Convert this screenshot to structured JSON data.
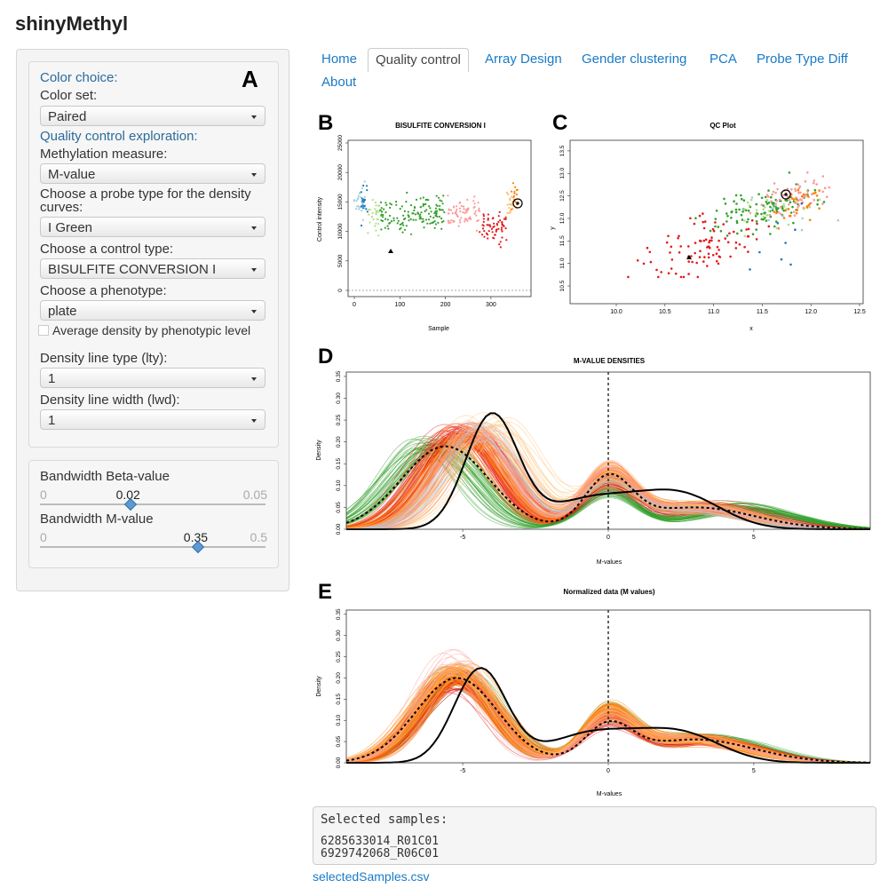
{
  "app_title": "shinyMethyl",
  "sidebar": {
    "panel_letter": "A",
    "color_choice_header": "Color choice:",
    "color_set_label": "Color set:",
    "color_set_value": "Paired",
    "qc_header": "Quality control exploration:",
    "meth_measure_label": "Methylation measure:",
    "meth_measure_value": "M-value",
    "probe_type_label": "Choose a probe type for the density curves:",
    "probe_type_value": "I Green",
    "control_type_label": "Choose a control type:",
    "control_type_value": "BISULFITE CONVERSION I",
    "phenotype_label": "Choose a phenotype:",
    "phenotype_value": "plate",
    "avg_density_label": "Average density by phenotypic level",
    "lty_label": "Density line type (lty):",
    "lty_value": "1",
    "lwd_label": "Density line width (lwd):",
    "lwd_value": "1",
    "bw_beta_label": "Bandwidth Beta-value",
    "bw_beta_min": "0",
    "bw_beta_max": "0.05",
    "bw_beta_value": "0.02",
    "bw_beta_fraction": 0.4,
    "bw_m_label": "Bandwidth M-value",
    "bw_m_min": "0",
    "bw_m_max": "0.5",
    "bw_m_value": "0.35",
    "bw_m_fraction": 0.7
  },
  "tabs": [
    "Home",
    "Quality control",
    "Array Design",
    "Gender clustering",
    "PCA",
    "Probe Type Diff",
    "About"
  ],
  "active_tab": "Quality control",
  "plots": {
    "B": {
      "letter": "B",
      "title": "BISULFITE CONVERSION I",
      "xlabel": "Sample",
      "ylabel": "Control intensity",
      "xticks": [
        "0",
        "100",
        "200",
        "300"
      ],
      "yticks": [
        "0",
        "5000",
        "10000",
        "15000",
        "20000",
        "25000"
      ]
    },
    "C": {
      "letter": "C",
      "title": "QC Plot",
      "xlabel": "x",
      "ylabel": "y",
      "xticks": [
        "10.0",
        "10.5",
        "11.0",
        "11.5",
        "12.0",
        "12.5"
      ],
      "yticks": [
        "10.5",
        "11.0",
        "11.5",
        "12.0",
        "12.5",
        "13.0",
        "13.5"
      ]
    },
    "D": {
      "letter": "D",
      "title": "M-VALUE DENSITIES",
      "xlabel": "M-values",
      "ylabel": "Density",
      "xticks": [
        "-5",
        "0",
        "5"
      ],
      "yticks": [
        "0.00",
        "0.05",
        "0.10",
        "0.15",
        "0.20",
        "0.25",
        "0.30",
        "0.35"
      ]
    },
    "E": {
      "letter": "E",
      "title": "Normalized data (M values)",
      "xlabel": "M-values",
      "ylabel": "Density",
      "xticks": [
        "-5",
        "0",
        "5"
      ],
      "yticks": [
        "0.00",
        "0.05",
        "0.10",
        "0.15",
        "0.20",
        "0.25",
        "0.30",
        "0.35"
      ]
    }
  },
  "selected": {
    "title": "Selected samples:",
    "samples": [
      "6285633014_R01C01",
      "6929742068_R06C01"
    ]
  },
  "download_link": "selectedSamples.csv",
  "colors": {
    "link": "#1a7ac6",
    "header": "#2b6b9a"
  }
}
